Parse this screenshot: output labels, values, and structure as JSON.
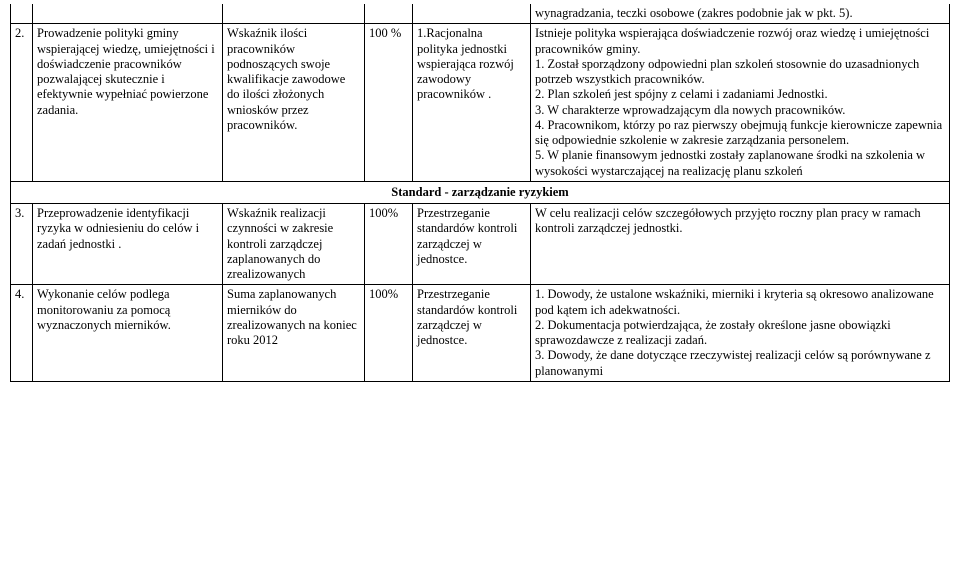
{
  "fragRow": {
    "e_text": "wynagradzania, teczki osobowe (zakres podobnie jak w pkt. 5)."
  },
  "rows": [
    {
      "num": "2.",
      "a": "Prowadzenie polityki gminy wspierającej wiedzę, umiejętności i doświadczenie pracowników pozwalającej skutecznie i efektywnie wypełniać powierzone zadania.",
      "b": "Wskaźnik ilości pracowników podnoszących swoje kwalifikacje zawodowe do ilości złożonych wniosków przez pracowników.",
      "c": "100 %",
      "d": "1.Racjonalna polityka jednostki wspierająca rozwój zawodowy pracowników .",
      "e": "Istnieje polityka wspierająca doświadczenie rozwój oraz wiedzę i umiejętności pracowników gminy.\n1. Został  sporządzony odpowiedni plan szkoleń stosownie do uzasadnionych potrzeb wszystkich pracowników.\n2. Plan szkoleń jest spójny z celami i zadaniami Jednostki.\n3. W charakterze wprowadzającym dla nowych pracowników.\n4. Pracownikom, którzy po raz pierwszy obejmują funkcje kierownicze zapewnia się odpowiednie szkolenie w zakresie zarządzania personelem.\n5. W planie finansowym jednostki zostały zaplanowane środki na szkolenia w wysokości wystarczającej na realizację planu szkoleń"
    },
    {
      "num": "3.",
      "a": "Przeprowadzenie identyfikacji ryzyka w odniesieniu do celów i zadań jednostki .",
      "b": "Wskaźnik realizacji czynności w zakresie kontroli zarządczej zaplanowanych do zrealizowanych",
      "c": "100%",
      "d": "Przestrzeganie standardów kontroli zarządczej w jednostce.",
      "e": "W celu realizacji celów szczegółowych przyjęto roczny plan pracy w ramach kontroli zarządczej jednostki."
    },
    {
      "num": "4.",
      "a": "Wykonanie celów podlega monitorowaniu  za pomocą wyznaczonych mierników.",
      "b": "Suma zaplanowanych mierników do zrealizowanych na koniec roku 2012",
      "c": "100%",
      "d": "Przestrzeganie standardów kontroli zarządczej w jednostce.",
      "e": "1. Dowody, że ustalone wskaźniki, mierniki i kryteria są okresowo analizowane pod kątem ich adekwatności.\n2. Dokumentacja potwierdzająca, że zostały określone jasne obowiązki sprawozdawcze z realizacji zadań.\n3. Dowody, że dane dotyczące rzeczywistej realizacji celów są porównywane z planowanymi"
    }
  ],
  "sectionHeader": "Standard  - zarządzanie ryzykiem"
}
